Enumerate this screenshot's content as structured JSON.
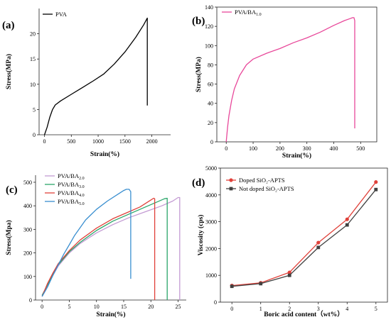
{
  "chart_data": [
    {
      "panel": "(a)",
      "type": "line",
      "xlabel": "Strain(%)",
      "ylabel": "Stress(MPa)",
      "xticks": [
        "0",
        "500",
        "1000",
        "1500",
        "2000"
      ],
      "yticks": [
        "0",
        "5",
        "10",
        "15",
        "20"
      ],
      "xlim": [
        -100,
        2350
      ],
      "ylim": [
        0,
        25
      ],
      "legend_position": "top-left",
      "series": [
        {
          "name": "PVA",
          "color": "#000000",
          "x": [
            0,
            50,
            100,
            150,
            200,
            300,
            500,
            700,
            900,
            1100,
            1300,
            1500,
            1700,
            1850,
            1910,
            1915,
            1915
          ],
          "y": [
            0,
            1.5,
            3.5,
            5.0,
            5.9,
            6.7,
            8.0,
            9.3,
            10.6,
            12.0,
            14.0,
            16.4,
            19.3,
            21.8,
            23.0,
            23.1,
            5.8
          ]
        }
      ]
    },
    {
      "panel": "(b)",
      "type": "line",
      "xlabel": "Strain(%)",
      "ylabel": "Stress(MPa)",
      "xticks": [
        "0",
        "100",
        "200",
        "300",
        "400",
        "500"
      ],
      "yticks": [
        "0",
        "20",
        "40",
        "60",
        "80",
        "100",
        "120",
        "140"
      ],
      "xlim": [
        -35,
        560
      ],
      "ylim": [
        0,
        140
      ],
      "legend_position": "top-left",
      "series": [
        {
          "name": "PVA/BA",
          "name_subscript": "1.0",
          "color": "#e8489a",
          "x": [
            0,
            5,
            10,
            20,
            30,
            50,
            75,
            100,
            150,
            200,
            250,
            300,
            350,
            400,
            440,
            460,
            470,
            475,
            478,
            478
          ],
          "y": [
            0,
            15,
            27,
            43,
            55,
            69,
            80,
            86,
            92,
            97,
            103,
            108,
            114,
            121,
            126,
            128,
            129,
            129,
            126,
            14
          ]
        }
      ]
    },
    {
      "panel": "(c)",
      "type": "line",
      "xlabel": "Strain(%)",
      "ylabel": "Stress(Mpa)",
      "xticks": [
        "0",
        "5",
        "10",
        "15",
        "20",
        "25"
      ],
      "yticks": [
        "0",
        "100",
        "200",
        "300",
        "400",
        "500"
      ],
      "xlim": [
        -1.2,
        26.5
      ],
      "ylim": [
        0,
        530
      ],
      "legend_position": "top-left",
      "series": [
        {
          "name": "PVA/BA",
          "name_subscript": "2.0",
          "color": "#c39bd3",
          "x": [
            0,
            1,
            2,
            3,
            5,
            7,
            10,
            13,
            16,
            19,
            22,
            24,
            25,
            25.3,
            25.3
          ],
          "y": [
            20,
            60,
            105,
            145,
            200,
            240,
            285,
            320,
            350,
            375,
            400,
            420,
            435,
            435,
            0
          ]
        },
        {
          "name": "PVA/BA",
          "name_subscript": "3.0",
          "color": "#2ca66b",
          "x": [
            0,
            1,
            2,
            3,
            5,
            7,
            10,
            13,
            16,
            19,
            21,
            22.5,
            23,
            23,
            23
          ],
          "y": [
            20,
            65,
            110,
            150,
            205,
            245,
            295,
            335,
            365,
            395,
            415,
            430,
            432,
            430,
            0
          ]
        },
        {
          "name": "PVA/BA",
          "name_subscript": "4.0",
          "color": "#e0413a",
          "x": [
            0,
            1,
            2,
            3,
            5,
            7,
            10,
            13,
            16,
            18,
            20,
            20.5,
            20.7,
            20.7
          ],
          "y": [
            15,
            70,
            115,
            155,
            210,
            255,
            305,
            345,
            375,
            395,
            425,
            432,
            430,
            0
          ]
        },
        {
          "name": "PVA/BA",
          "name_subscript": "5.0",
          "color": "#3a8fd0",
          "x": [
            0,
            1,
            2,
            3,
            4,
            5,
            6,
            8,
            10,
            12,
            14,
            15,
            15.5,
            16,
            16.3,
            16.3
          ],
          "y": [
            15,
            55,
            105,
            150,
            195,
            235,
            275,
            340,
            385,
            420,
            450,
            465,
            470,
            470,
            460,
            90
          ]
        }
      ]
    },
    {
      "panel": "(d)",
      "type": "line",
      "xlabel": "Boric acid content（wt%）",
      "ylabel": "Viscosity (cps)",
      "xticks": [
        "0",
        "1",
        "2",
        "3",
        "4",
        "5"
      ],
      "yticks": [
        "0",
        "1000",
        "2000",
        "3000",
        "4000",
        "5000"
      ],
      "xlim": [
        -0.4,
        5.4
      ],
      "ylim": [
        0,
        5000
      ],
      "legend_position": "top-left",
      "series": [
        {
          "name": "Doped SiO₂-APTS",
          "color": "#e0413a",
          "marker": "circle",
          "x": [
            0,
            1,
            2,
            3,
            4,
            5
          ],
          "y": [
            620,
            720,
            1110,
            2220,
            3090,
            4480
          ]
        },
        {
          "name": "Not doped SiO₂-APTS",
          "color": "#404040",
          "marker": "square",
          "x": [
            0,
            1,
            2,
            3,
            4,
            5
          ],
          "y": [
            590,
            690,
            1000,
            2040,
            2880,
            4200
          ]
        }
      ]
    }
  ]
}
